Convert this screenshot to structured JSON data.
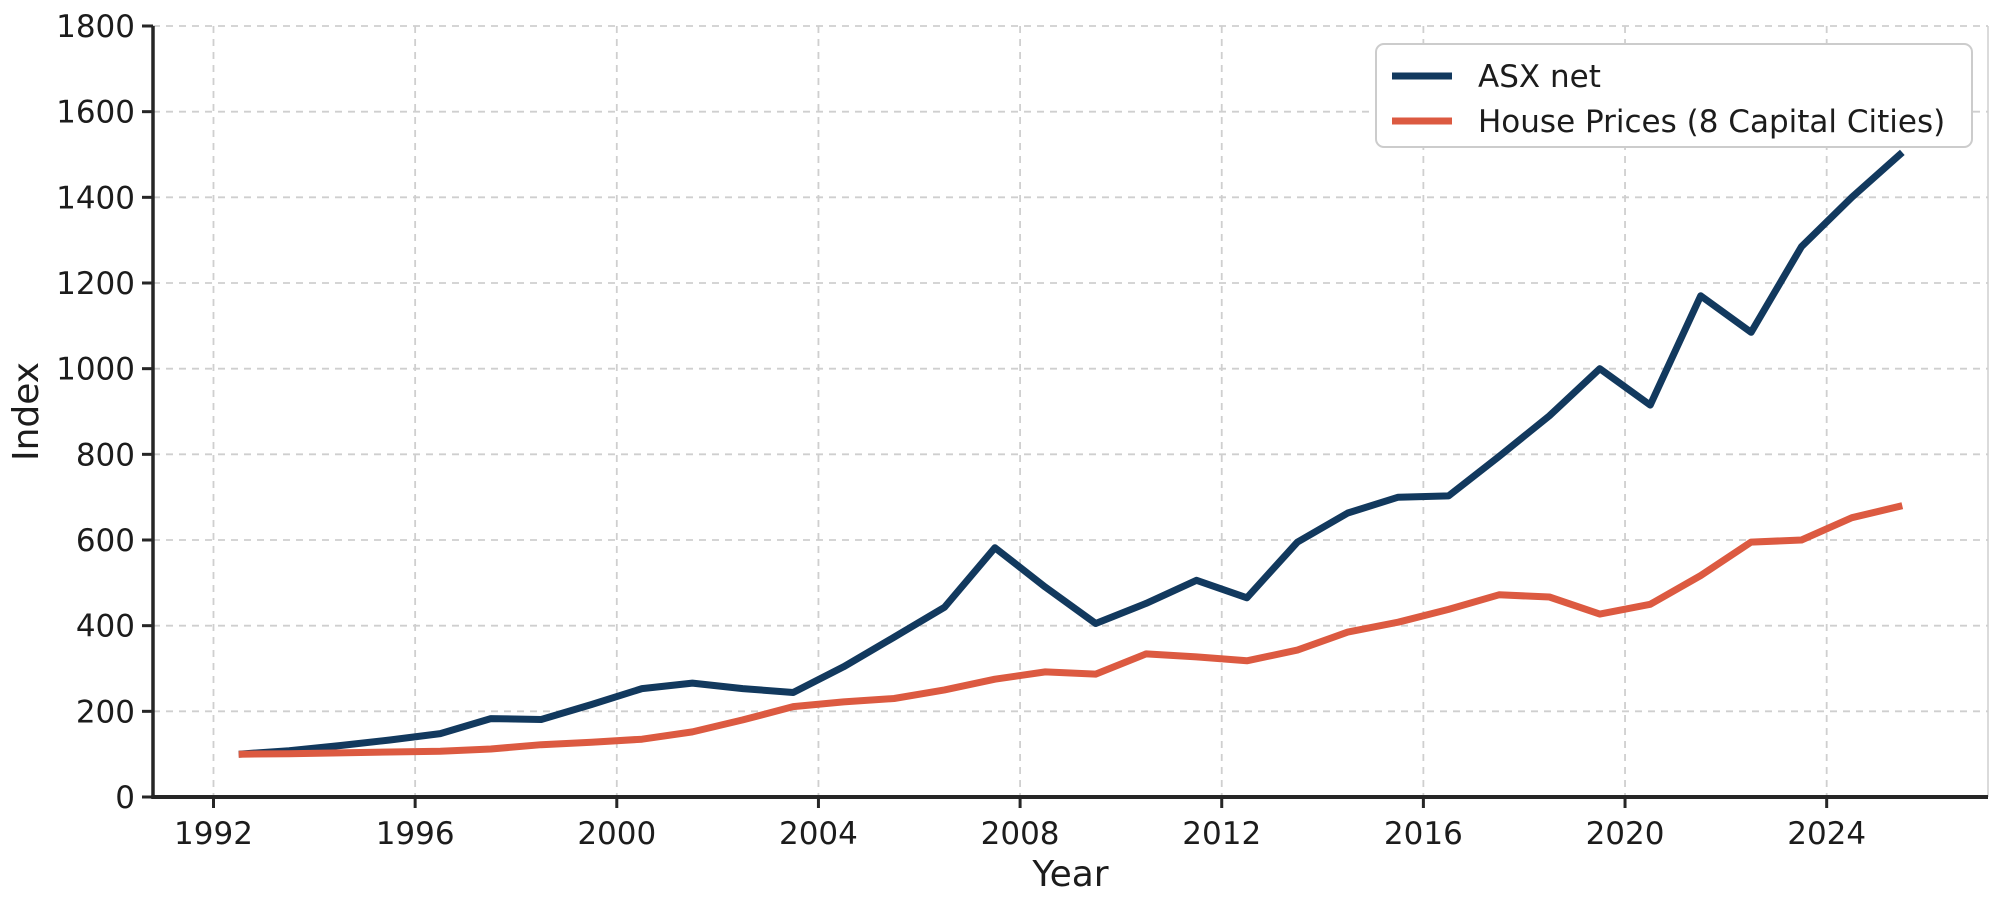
{
  "chart_data": {
    "type": "line",
    "title": "",
    "xlabel": "Year",
    "ylabel": "Index",
    "xlim": [
      1990.8,
      2027.2
    ],
    "ylim": [
      0,
      1800
    ],
    "xticks": [
      1992,
      1996,
      2000,
      2004,
      2008,
      2012,
      2016,
      2020,
      2024
    ],
    "yticks": [
      0,
      200,
      400,
      600,
      800,
      1000,
      1200,
      1400,
      1600,
      1800
    ],
    "grid": true,
    "grid_color": "#cfcfcf",
    "spine_color": "#262626",
    "text_color": "#1c1c1c",
    "legend_position": "upper right",
    "x": [
      1992.5,
      1993.5,
      1994.5,
      1995.5,
      1996.5,
      1997.5,
      1998.5,
      1999.5,
      2000.5,
      2001.5,
      2002.5,
      2003.5,
      2004.5,
      2005.5,
      2006.5,
      2007.5,
      2008.5,
      2009.5,
      2010.5,
      2011.5,
      2012.5,
      2013.5,
      2014.5,
      2015.5,
      2016.5,
      2017.5,
      2018.5,
      2019.5,
      2020.5,
      2021.5,
      2022.5,
      2023.5,
      2024.5,
      2025.5
    ],
    "series": [
      {
        "name": "ASX net",
        "color": "#12395e",
        "values": [
          100,
          108,
          120,
          133,
          148,
          183,
          181,
          216,
          253,
          266,
          253,
          244,
          304,
          373,
          443,
          582,
          490,
          405,
          452,
          506,
          465,
          595,
          663,
          700,
          703,
          795,
          890,
          1000,
          915,
          1170,
          1085,
          1285,
          1400,
          1505
        ]
      },
      {
        "name": "House Prices (8 Capital Cities)",
        "color": "#dc5a41",
        "values": [
          100,
          101,
          103,
          105,
          107,
          112,
          122,
          128,
          135,
          152,
          180,
          211,
          222,
          230,
          250,
          275,
          292,
          287,
          334,
          327,
          318,
          343,
          385,
          408,
          438,
          472,
          467,
          427,
          450,
          517,
          595,
          600,
          652,
          680
        ]
      }
    ]
  }
}
